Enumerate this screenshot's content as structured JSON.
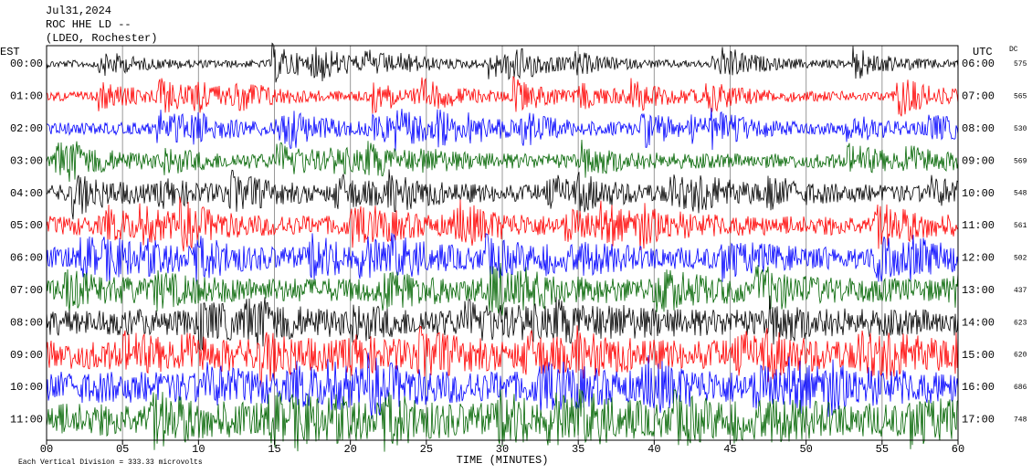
{
  "header": {
    "date": "Jul31,2024",
    "station": "ROC HHE LD --",
    "location": "(LDEO, Rochester)"
  },
  "left_axis_title": "EST",
  "right_axis_title": "UTC",
  "dc_title": "DC",
  "left_labels": [
    "00:00",
    "01:00",
    "02:00",
    "03:00",
    "04:00",
    "05:00",
    "06:00",
    "07:00",
    "08:00",
    "09:00",
    "10:00",
    "11:00"
  ],
  "right_labels": [
    "06:00",
    "07:00",
    "08:00",
    "09:00",
    "10:00",
    "11:00",
    "12:00",
    "13:00",
    "14:00",
    "15:00",
    "16:00",
    "17:00"
  ],
  "dc_values": [
    "575",
    "565",
    "530",
    "569",
    "548",
    "561",
    "502",
    "437",
    "623",
    "620",
    "686",
    "748"
  ],
  "x_ticks": [
    "00",
    "05",
    "10",
    "15",
    "20",
    "25",
    "30",
    "35",
    "40",
    "45",
    "50",
    "55",
    "60"
  ],
  "x_axis_label": "TIME (MINUTES)",
  "footnote": "Each Vertical Division =  333.33 microvolts"
}
